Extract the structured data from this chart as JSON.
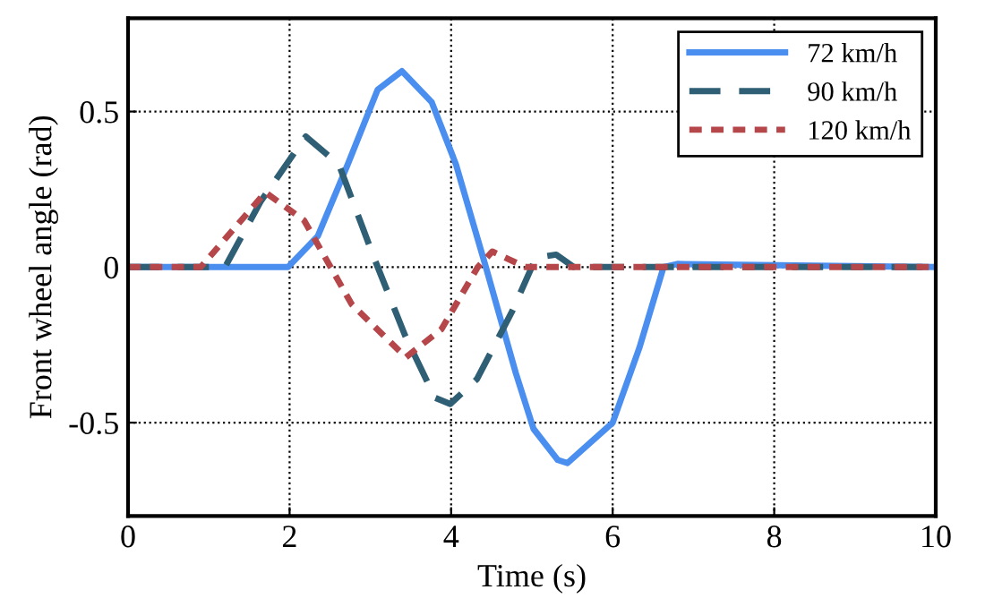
{
  "chart_data": {
    "type": "line",
    "xlabel": "Time (s)",
    "ylabel": "Front wheel angle (rad)",
    "xlim": [
      0,
      10
    ],
    "xticks": [
      0,
      2,
      4,
      6,
      8,
      10
    ],
    "ylim": [
      -0.8,
      0.8
    ],
    "yticks": [
      -0.5,
      0,
      0.5
    ],
    "grid": true,
    "legend": "top right",
    "series": [
      {
        "name": "72 km/h",
        "color": "#4a8ff0",
        "line_style": "solid",
        "x": [
          0,
          1.98,
          2.35,
          2.72,
          3.09,
          3.39,
          3.76,
          4.06,
          4.43,
          4.8,
          5.02,
          5.32,
          5.44,
          6.0,
          6.33,
          6.63,
          6.8,
          10
        ],
        "values": [
          0,
          0,
          0.1,
          0.33,
          0.57,
          0.63,
          0.53,
          0.33,
          0,
          -0.34,
          -0.52,
          -0.62,
          -0.63,
          -0.5,
          -0.26,
          0,
          0.01,
          0
        ]
      },
      {
        "name": "90 km/h",
        "color": "#2f5f74",
        "line_style": "dashed",
        "x": [
          0,
          1.2,
          1.64,
          2.2,
          2.61,
          3.06,
          3.43,
          3.8,
          3.99,
          4.32,
          4.76,
          5.05,
          5.3,
          5.52,
          10
        ],
        "values": [
          0,
          0,
          0.21,
          0.42,
          0.33,
          0.02,
          -0.22,
          -0.42,
          -0.44,
          -0.36,
          -0.14,
          0.03,
          0.04,
          0,
          0
        ]
      },
      {
        "name": "120 km/h",
        "color": "#b5474a",
        "line_style": "dotted",
        "x": [
          0,
          0.9,
          1.7,
          2.18,
          2.77,
          3.44,
          3.88,
          4.33,
          4.51,
          4.92,
          10
        ],
        "values": [
          0,
          0,
          0.24,
          0.15,
          -0.12,
          -0.29,
          -0.2,
          0,
          0.05,
          0,
          0
        ]
      }
    ]
  }
}
